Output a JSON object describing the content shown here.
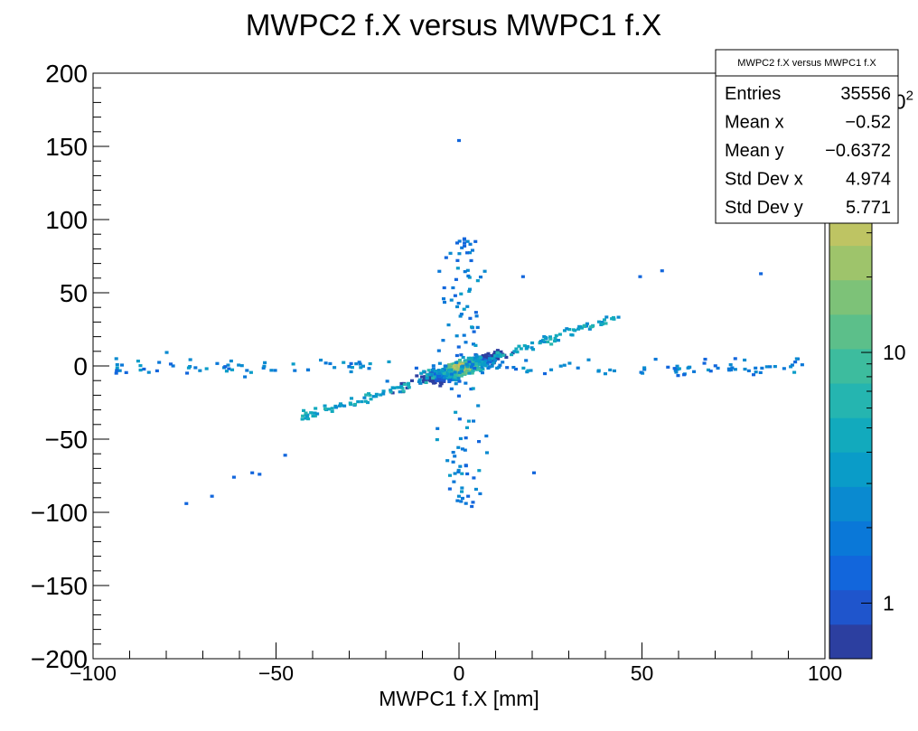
{
  "chart_data": {
    "type": "heatmap",
    "title": "MWPC2 f.X versus MWPC1 f.X",
    "xlabel": "MWPC1 f.X [mm]",
    "ylabel": "",
    "xlim": [
      -100,
      100
    ],
    "ylim": [
      -200,
      200
    ],
    "x_ticks": [
      {
        "value": -100,
        "label": "−100"
      },
      {
        "value": -50,
        "label": "−50"
      },
      {
        "value": 0,
        "label": "0"
      },
      {
        "value": 50,
        "label": "50"
      },
      {
        "value": 100,
        "label": "100"
      }
    ],
    "y_ticks": [
      {
        "value": -200,
        "label": "−200"
      },
      {
        "value": -150,
        "label": "−150"
      },
      {
        "value": -100,
        "label": "−100"
      },
      {
        "value": -50,
        "label": "−50"
      },
      {
        "value": 0,
        "label": "0"
      },
      {
        "value": 50,
        "label": "50"
      },
      {
        "value": 100,
        "label": "100"
      },
      {
        "value": 150,
        "label": "150"
      },
      {
        "value": 200,
        "label": "200"
      }
    ],
    "colorbar": {
      "scale": "log",
      "min": 0.6,
      "max": 130,
      "labels": [
        {
          "value": 1,
          "label": "1"
        },
        {
          "value": 10,
          "label": "10"
        },
        {
          "value": 100,
          "label": "10",
          "sup": "2"
        }
      ]
    },
    "stats_box": {
      "title": "MWPC2 f.X versus MWPC1 f.X",
      "rows": [
        {
          "label": "Entries",
          "value": "35556"
        },
        {
          "label": "Mean x",
          "value": "−0.52"
        },
        {
          "label": "Mean y",
          "value": "−0.6372"
        },
        {
          "label": "Std Dev x",
          "value": "4.974"
        },
        {
          "label": "Std Dev y",
          "value": "5.771"
        }
      ]
    },
    "distribution": {
      "entries": 35556,
      "mean_x": -0.52,
      "mean_y": -0.6372,
      "std_x": 4.974,
      "std_y": 5.771,
      "correlation_slope": 0.8
    },
    "colors": {
      "palette": [
        "#2c3fa0",
        "#1f55cc",
        "#1266dc",
        "#0a78d8",
        "#0a8ad0",
        "#0a9cc8",
        "#12aabd",
        "#25b5b0",
        "#3dbc9e",
        "#5cbf8a",
        "#7dc278",
        "#9ec46b",
        "#bec463",
        "#d6bf55",
        "#e9c24a",
        "#f4d74a",
        "#f9f042"
      ]
    }
  }
}
